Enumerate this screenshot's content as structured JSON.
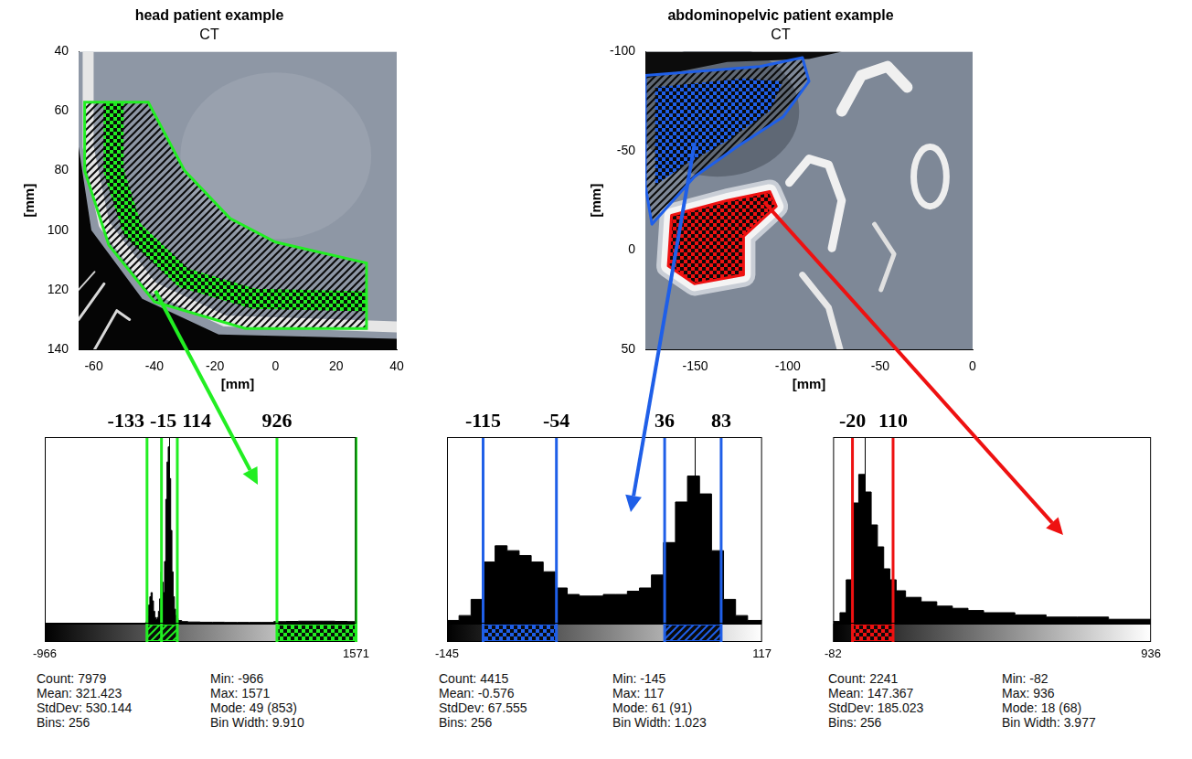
{
  "chart_data": [
    {
      "type": "image",
      "title": "head patient example",
      "subtitle": "CT",
      "xlabel": "[mm]",
      "ylabel": "[mm]",
      "xlim": [
        -65,
        40
      ],
      "xticks": [
        -60,
        -40,
        -20,
        0,
        20,
        40
      ],
      "ylim": [
        40,
        140
      ],
      "yticks": [
        40,
        60,
        80,
        100,
        120,
        140
      ],
      "color": "#22ee22"
    },
    {
      "type": "image",
      "title": "abdominopelvic patient example",
      "subtitle": "CT",
      "xlabel": "[mm]",
      "ylabel": "[mm]",
      "xlim": [
        -177,
        0
      ],
      "xticks": [
        -150,
        -100,
        -50,
        0
      ],
      "ylim": [
        -100,
        50
      ],
      "yticks": [
        -100,
        -50,
        0,
        50
      ],
      "colors": [
        "#1f5fe8",
        "#ee1111"
      ]
    },
    {
      "type": "histogram",
      "color": "#22ee22",
      "bins": [
        -966,
        -150,
        -140,
        -130,
        -120,
        -110,
        -100,
        -90,
        -80,
        -70,
        -60,
        -50,
        -40,
        -30,
        -20,
        -10,
        0,
        10,
        20,
        30,
        40,
        50,
        60,
        70,
        80,
        90,
        100,
        110,
        120,
        150,
        200,
        300,
        400,
        500,
        600,
        700,
        800,
        900,
        1000,
        1100,
        1200,
        1300,
        1400,
        1500,
        1571
      ],
      "counts": [
        1,
        3,
        10,
        40,
        90,
        130,
        150,
        110,
        60,
        30,
        20,
        30,
        60,
        120,
        250,
        200,
        150,
        300,
        600,
        780,
        853,
        700,
        450,
        250,
        130,
        70,
        40,
        25,
        15,
        10,
        8,
        7,
        7,
        6,
        6,
        6,
        6,
        10,
        11,
        12,
        12,
        12,
        11,
        10
      ],
      "xlim": [
        -966,
        1571
      ],
      "xticks": [
        -966,
        1571
      ],
      "ylim": [
        0,
        900
      ],
      "tick_labels": "x",
      "thresholds": [
        -133,
        -15,
        114,
        926
      ],
      "regions": [
        [
          -133,
          114
        ],
        [
          926,
          1571
        ]
      ],
      "mode": 49,
      "stats": [
        [
          "Count:",
          "7979"
        ],
        [
          "Mean:",
          "321.423"
        ],
        [
          "StdDev:",
          "530.144"
        ],
        [
          "Bins:",
          "256"
        ],
        [
          "Min:",
          "-966"
        ],
        [
          "Max:",
          "1571"
        ],
        [
          "Mode:",
          "49 (853)"
        ],
        [
          "Bin Width:",
          "9.910"
        ]
      ]
    },
    {
      "type": "histogram",
      "color": "#1f5fe8",
      "bins": [
        -145,
        -135,
        -125,
        -115,
        -105,
        -95,
        -85,
        -75,
        -65,
        -55,
        -45,
        -35,
        -25,
        -15,
        -5,
        5,
        15,
        25,
        35,
        45,
        55,
        65,
        75,
        85,
        95,
        105,
        117
      ],
      "counts": [
        2,
        5,
        15,
        38,
        48,
        45,
        42,
        38,
        32,
        22,
        18,
        17,
        17,
        18,
        18,
        20,
        22,
        30,
        50,
        75,
        91,
        80,
        45,
        15,
        5,
        2
      ],
      "xlim": [
        -145,
        117
      ],
      "xticks": [
        -145,
        117
      ],
      "ylim": [
        0,
        115
      ],
      "tick_labels": "x",
      "thresholds": [
        -115,
        -54,
        36,
        83
      ],
      "regions": [
        [
          -115,
          -54
        ],
        [
          36,
          83
        ]
      ],
      "mode": 61,
      "stats": [
        [
          "Count:",
          "4415"
        ],
        [
          "Mean:",
          "-0.576"
        ],
        [
          "StdDev:",
          "67.555"
        ],
        [
          "Bins:",
          "256"
        ],
        [
          "Min:",
          "-145"
        ],
        [
          "Max:",
          "117"
        ],
        [
          "Mode:",
          "61 (91)"
        ],
        [
          "Bin Width:",
          "1.023"
        ]
      ]
    },
    {
      "type": "histogram",
      "color": "#ee1111",
      "bins": [
        -82,
        -60,
        -40,
        -20,
        0,
        20,
        40,
        60,
        80,
        100,
        120,
        150,
        200,
        250,
        300,
        350,
        400,
        500,
        600,
        700,
        800,
        936
      ],
      "counts": [
        1,
        5,
        20,
        55,
        68,
        60,
        45,
        35,
        25,
        20,
        15,
        12,
        10,
        8,
        7,
        6,
        5,
        4,
        3,
        3,
        2
      ],
      "xlim": [
        -82,
        936
      ],
      "xticks": [
        -82,
        936
      ],
      "ylim": [
        0,
        85
      ],
      "tick_labels": "x",
      "thresholds": [
        -20,
        110
      ],
      "regions": [
        [
          -20,
          110
        ]
      ],
      "mode": 18,
      "stats": [
        [
          "Count:",
          "2241"
        ],
        [
          "Mean:",
          "147.367"
        ],
        [
          "StdDev:",
          "185.023"
        ],
        [
          "Bins:",
          "256"
        ],
        [
          "Min:",
          "-82"
        ],
        [
          "Max:",
          "936"
        ],
        [
          "Mode:",
          "18 (68)"
        ],
        [
          "Bin Width:",
          "3.977"
        ]
      ]
    }
  ]
}
